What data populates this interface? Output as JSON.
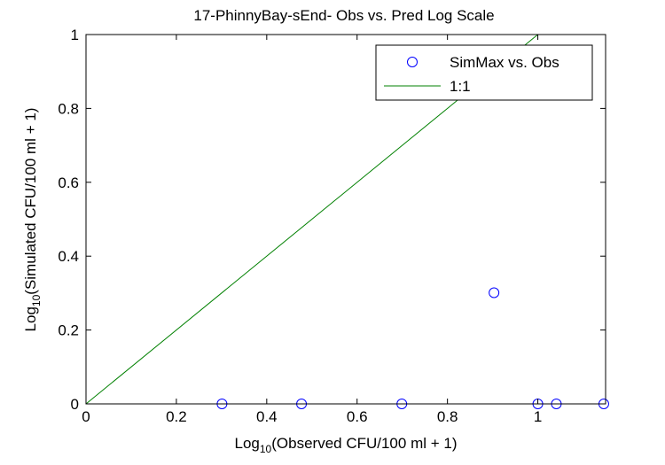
{
  "chart_data": {
    "type": "scatter",
    "title": "17-PhinnyBay-sEnd- Obs vs. Pred Log Scale",
    "xlabel": {
      "prefix": "Log",
      "sub": "10",
      "suffix": "(Observed CFU/100 ml + 1)"
    },
    "ylabel": {
      "prefix": "Log",
      "sub": "10",
      "suffix": "(Simulated CFU/100 ml + 1)"
    },
    "xlim": [
      0,
      1.15
    ],
    "ylim": [
      0,
      1
    ],
    "xticks": [
      0,
      0.2,
      0.4,
      0.6,
      0.8,
      1
    ],
    "yticks": [
      0,
      0.2,
      0.4,
      0.6,
      0.8,
      1
    ],
    "xtick_labels": [
      "0",
      "0.2",
      "0.4",
      "0.6",
      "0.8",
      "1"
    ],
    "ytick_labels": [
      "0",
      "0.2",
      "0.4",
      "0.6",
      "0.8",
      "1"
    ],
    "grid": false,
    "legend_position": "top-right",
    "series": [
      {
        "name": "SimMax vs. Obs",
        "kind": "markers",
        "color": "#0000ff",
        "x": [
          0.301,
          0.477,
          0.699,
          0.903,
          1.0,
          1.041,
          1.146
        ],
        "y": [
          0,
          0,
          0,
          0.301,
          0,
          0,
          0
        ]
      },
      {
        "name": "1:1",
        "kind": "line",
        "color": "#008000",
        "x": [
          0,
          1.0
        ],
        "y": [
          0,
          1.0
        ]
      }
    ]
  }
}
